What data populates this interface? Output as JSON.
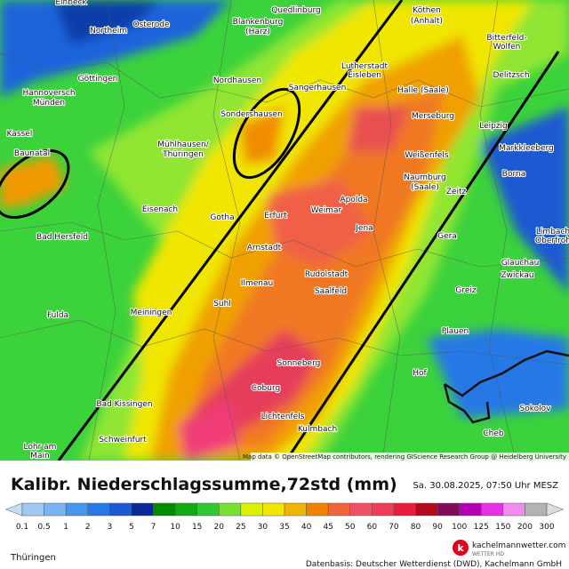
{
  "map": {
    "cities": [
      "Einbeck",
      "Quedlinburg",
      "Blankenburg",
      "(Harz)",
      "Osterode",
      "Northeim",
      "Köthen",
      "(Anhalt)",
      "Bitterfeld-",
      "Wolfen",
      "Göttingen",
      "Lutherstadt",
      "Eisleben",
      "Nordhausen",
      "Sangerhausen",
      "Halle (Saale)",
      "Delitzsch",
      "Hannoversch",
      "Münden",
      "Sondershausen",
      "Merseburg",
      "Kassel",
      "Leipzig",
      "Baunatal",
      "Mühlhausen/",
      "Thüringen",
      "Weißenfels",
      "Markkleeberg",
      "Naumburg",
      "(Saale)",
      "Borna",
      "Zeitz",
      "Eisenach",
      "Gotha",
      "Erfurt",
      "Weimar",
      "Apolda",
      "Jena",
      "Limbach",
      "Oberfroh",
      "Bad Hersfeld",
      "Arnstadt",
      "Gera",
      "Rudolstadt",
      "Glauchau",
      "Zwickau",
      "Ilmenau",
      "Saalfeld",
      "Greiz",
      "Fulda",
      "Meiningen",
      "Suhl",
      "Plauen",
      "Sonneberg",
      "Hof",
      "Coburg",
      "Bad Kissingen",
      "Lichtenfels",
      "Sokolov",
      "Kulmbach",
      "Cheb",
      "Schweinfurt",
      "Lohr am",
      "Main"
    ],
    "attribution": "Map data © OpenStreetMap contributors, rendering GIScience Research Group @ Heidelberg University"
  },
  "footer": {
    "title": "Kalibr. Niederschlagssumme,72std (mm)",
    "timestamp": "Sa. 30.08.2025, 07:50 Uhr MESZ",
    "region": "Thüringen",
    "brand": "kachelmannwetter.com",
    "brand_sub": "WETTER HD",
    "source": "Datenbasis: Deutscher Wetterdienst (DWD), Kachelmann GmbH"
  },
  "legend": {
    "labels": [
      0.1,
      0.5,
      1,
      2,
      3,
      5,
      7,
      10,
      15,
      20,
      25,
      30,
      35,
      40,
      45,
      50,
      60,
      70,
      80,
      90,
      100,
      125,
      150,
      200,
      300
    ],
    "colors": [
      "#c8dcf5",
      "#a0c8f0",
      "#78b4f0",
      "#4696eb",
      "#2878e6",
      "#1e5ad2",
      "#0a2896",
      "#008c00",
      "#14aa14",
      "#32c832",
      "#78e132",
      "#dcf000",
      "#f0e600",
      "#f0b400",
      "#f08200",
      "#f0643c",
      "#f05064",
      "#f03c5a",
      "#e61e3c",
      "#b40a1e",
      "#820a5a",
      "#b400b4",
      "#e632e6",
      "#f08cf0",
      "#b4b4b4",
      "#dcdcdc"
    ]
  }
}
